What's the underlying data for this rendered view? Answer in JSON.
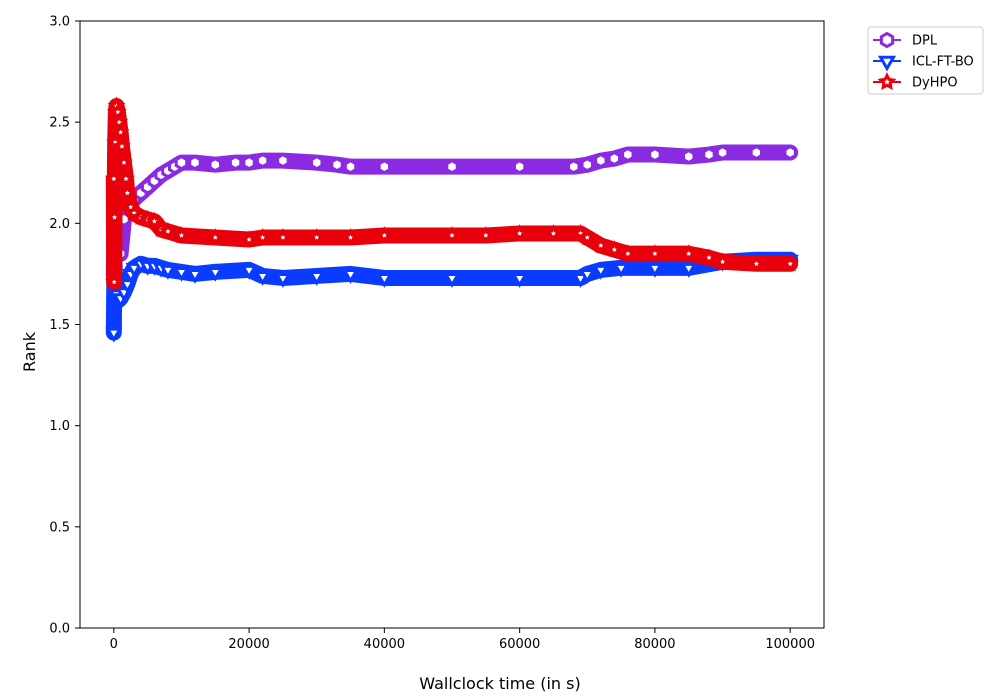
{
  "chart_data": {
    "type": "line",
    "xlabel": "Wallclock time (in s)",
    "ylabel": "Rank",
    "xlim": [
      -5000,
      105000
    ],
    "ylim": [
      0,
      3.0
    ],
    "x_ticks": [
      0,
      20000,
      40000,
      60000,
      80000,
      100000
    ],
    "x_tick_labels": [
      "0",
      "20000",
      "40000",
      "60000",
      "80000",
      "100000"
    ],
    "y_ticks": [
      0,
      0.5,
      1.0,
      1.5,
      2.0,
      2.5,
      3.0
    ],
    "y_tick_labels": [
      "0.0",
      "0.5",
      "1.0",
      "1.5",
      "2.0",
      "2.5",
      "3.0"
    ],
    "legend_position": "outside-top-right",
    "series": [
      {
        "name": "DPL",
        "color": "#8a2be2",
        "marker": "hexagon",
        "x": [
          0,
          100,
          200,
          400,
          700,
          1000,
          1500,
          2000,
          3000,
          4000,
          5000,
          6000,
          7000,
          8000,
          9000,
          10000,
          12000,
          15000,
          18000,
          20000,
          22000,
          25000,
          30000,
          33000,
          35000,
          40000,
          50000,
          60000,
          68000,
          70000,
          72000,
          74000,
          76000,
          80000,
          85000,
          88000,
          90000,
          95000,
          100000
        ],
        "y": [
          1.75,
          1.92,
          2.05,
          2.11,
          1.95,
          1.85,
          2.02,
          2.08,
          2.12,
          2.15,
          2.18,
          2.21,
          2.24,
          2.26,
          2.28,
          2.3,
          2.3,
          2.29,
          2.3,
          2.3,
          2.31,
          2.31,
          2.3,
          2.29,
          2.28,
          2.28,
          2.28,
          2.28,
          2.28,
          2.29,
          2.31,
          2.32,
          2.34,
          2.34,
          2.33,
          2.34,
          2.35,
          2.35,
          2.35
        ]
      },
      {
        "name": "ICL-FT-BO",
        "color": "#0a3cff",
        "marker": "triangle-down",
        "x": [
          0,
          100,
          200,
          400,
          700,
          1000,
          1500,
          2000,
          2500,
          3000,
          4000,
          5000,
          6000,
          7000,
          8000,
          10000,
          12000,
          15000,
          20000,
          22000,
          25000,
          30000,
          35000,
          40000,
          50000,
          60000,
          69000,
          70000,
          72000,
          75000,
          80000,
          85000,
          90000,
          95000,
          100000
        ],
        "y": [
          1.46,
          1.81,
          1.68,
          1.65,
          1.62,
          1.63,
          1.66,
          1.7,
          1.75,
          1.78,
          1.8,
          1.79,
          1.79,
          1.78,
          1.77,
          1.76,
          1.75,
          1.76,
          1.77,
          1.74,
          1.73,
          1.74,
          1.75,
          1.73,
          1.73,
          1.73,
          1.73,
          1.75,
          1.77,
          1.78,
          1.78,
          1.78,
          1.81,
          1.82,
          1.82
        ]
      },
      {
        "name": "DyHPO",
        "color": "#e8000b",
        "marker": "star",
        "x": [
          0,
          50,
          100,
          200,
          300,
          400,
          600,
          800,
          1000,
          1200,
          1500,
          1800,
          2000,
          2500,
          3000,
          4000,
          5000,
          6000,
          7000,
          8000,
          10000,
          15000,
          20000,
          22000,
          25000,
          30000,
          35000,
          40000,
          50000,
          55000,
          60000,
          65000,
          69000,
          70000,
          72000,
          74000,
          76000,
          80000,
          85000,
          88000,
          90000,
          95000,
          100000
        ],
        "y": [
          2.22,
          1.71,
          2.03,
          2.4,
          2.55,
          2.58,
          2.55,
          2.5,
          2.45,
          2.38,
          2.3,
          2.22,
          2.15,
          2.08,
          2.05,
          2.03,
          2.02,
          2.01,
          1.97,
          1.96,
          1.94,
          1.93,
          1.92,
          1.93,
          1.93,
          1.93,
          1.93,
          1.94,
          1.94,
          1.94,
          1.95,
          1.95,
          1.95,
          1.93,
          1.89,
          1.87,
          1.85,
          1.85,
          1.85,
          1.83,
          1.81,
          1.8,
          1.8
        ]
      }
    ]
  }
}
